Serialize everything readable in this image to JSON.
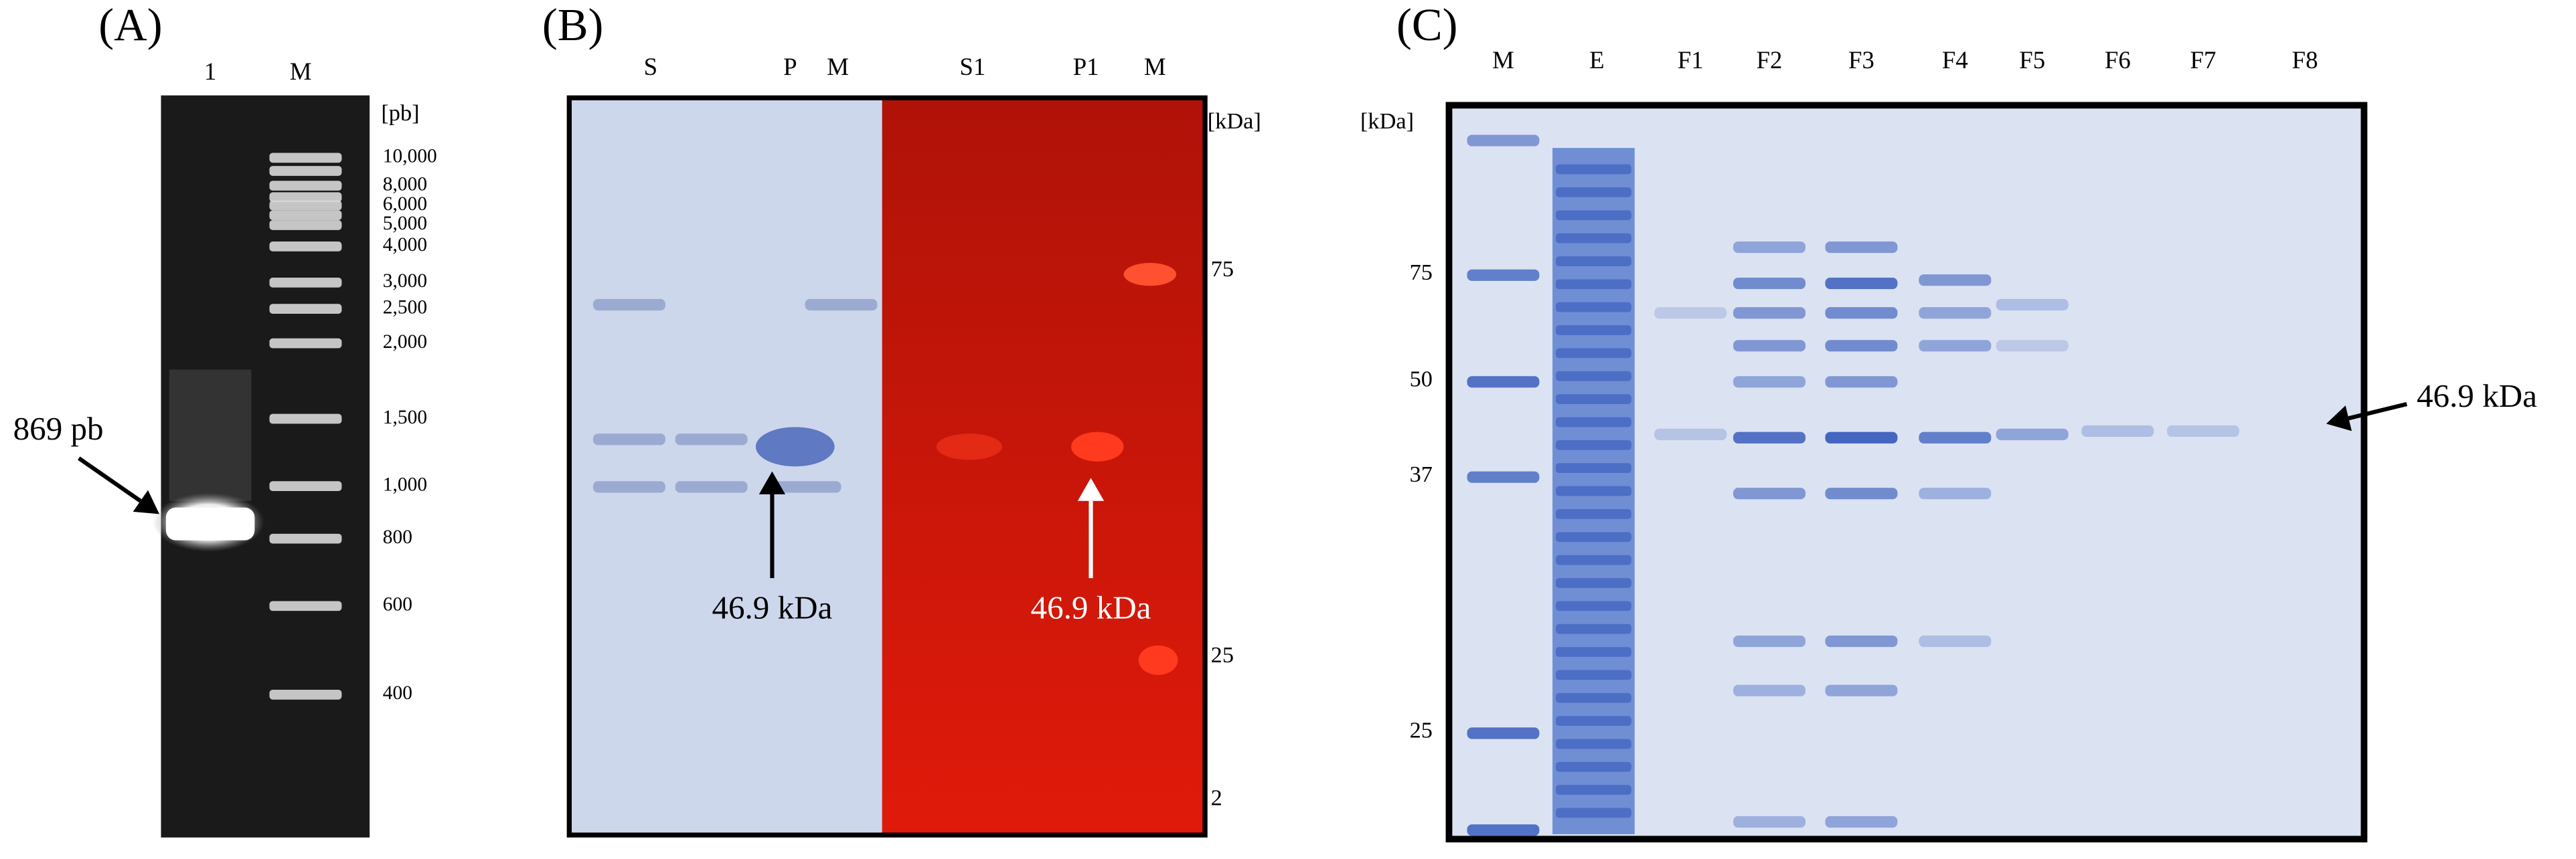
{
  "panels": [
    {
      "label": "(A)",
      "lanes": [
        "1",
        "M"
      ],
      "unit": "[pb]",
      "markers": [
        "10,000",
        "8,000",
        "6,000",
        "5,000",
        "4,000",
        "3,000",
        "2,500",
        "2,000",
        "1,500",
        "1,000",
        "800",
        "600",
        "400"
      ],
      "annotations": [
        "869 pb"
      ]
    },
    {
      "label": "(B)",
      "lanes": [
        "S",
        "P",
        "M",
        "S1",
        "P1",
        "M"
      ],
      "unit": "[kDa]",
      "markers": [
        "75",
        "25",
        "2"
      ],
      "annotations": [
        "46.9 kDa",
        "46.9 kDa"
      ]
    },
    {
      "label": "(C)",
      "lanes": [
        "M",
        "E",
        "F1",
        "F2",
        "F3",
        "F4",
        "F5",
        "F6",
        "F7",
        "F8"
      ],
      "unit": "[kDa]",
      "markers": [
        "75",
        "50",
        "37",
        "25"
      ],
      "annotations": [
        "46.9 kDa"
      ]
    }
  ]
}
